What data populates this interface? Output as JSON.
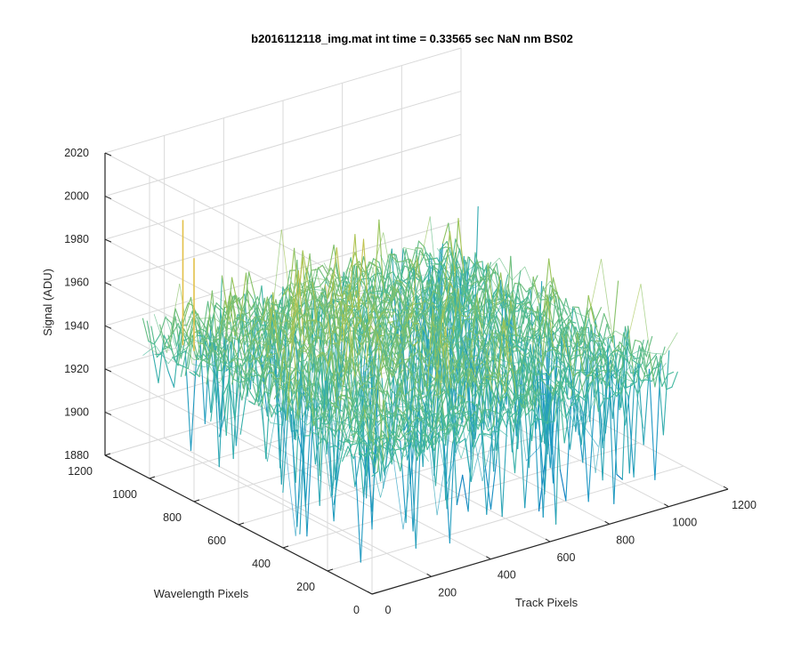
{
  "chart_data": {
    "type": "surface",
    "title": "b2016112118_img.mat int time = 0.33565 sec  NaN nm BS02",
    "xlabel": "Track Pixels",
    "ylabel": "Wavelength Pixels",
    "zlabel": "Signal (ADU)",
    "xlim": [
      0,
      1200
    ],
    "ylim": [
      0,
      1200
    ],
    "zlim": [
      1880,
      2020
    ],
    "x_ticks": [
      "0",
      "200",
      "400",
      "600",
      "800",
      "1000",
      "1200"
    ],
    "y_ticks": [
      "0",
      "200",
      "400",
      "600",
      "800",
      "1000",
      "1200"
    ],
    "z_ticks": [
      "1880",
      "1900",
      "1920",
      "1940",
      "1960",
      "1980",
      "2000",
      "2020"
    ],
    "grid": true,
    "colormap": "parula",
    "surface_extent": {
      "x": [
        0,
        1030
      ],
      "y": [
        0,
        1030
      ]
    },
    "signal_base": 1943,
    "signal_noise_low": 1890,
    "signal_noise_high": 1985,
    "spikes": [
      {
        "x": 0,
        "y": 930,
        "z": 2001
      },
      {
        "x": 0,
        "y": 880,
        "z": 1986
      }
    ],
    "colors": {
      "low": "#0072BD",
      "mid": "#3FB8A0",
      "high": "#E3C14A",
      "grid": "#d9d9d9",
      "axis": "#262626"
    }
  }
}
